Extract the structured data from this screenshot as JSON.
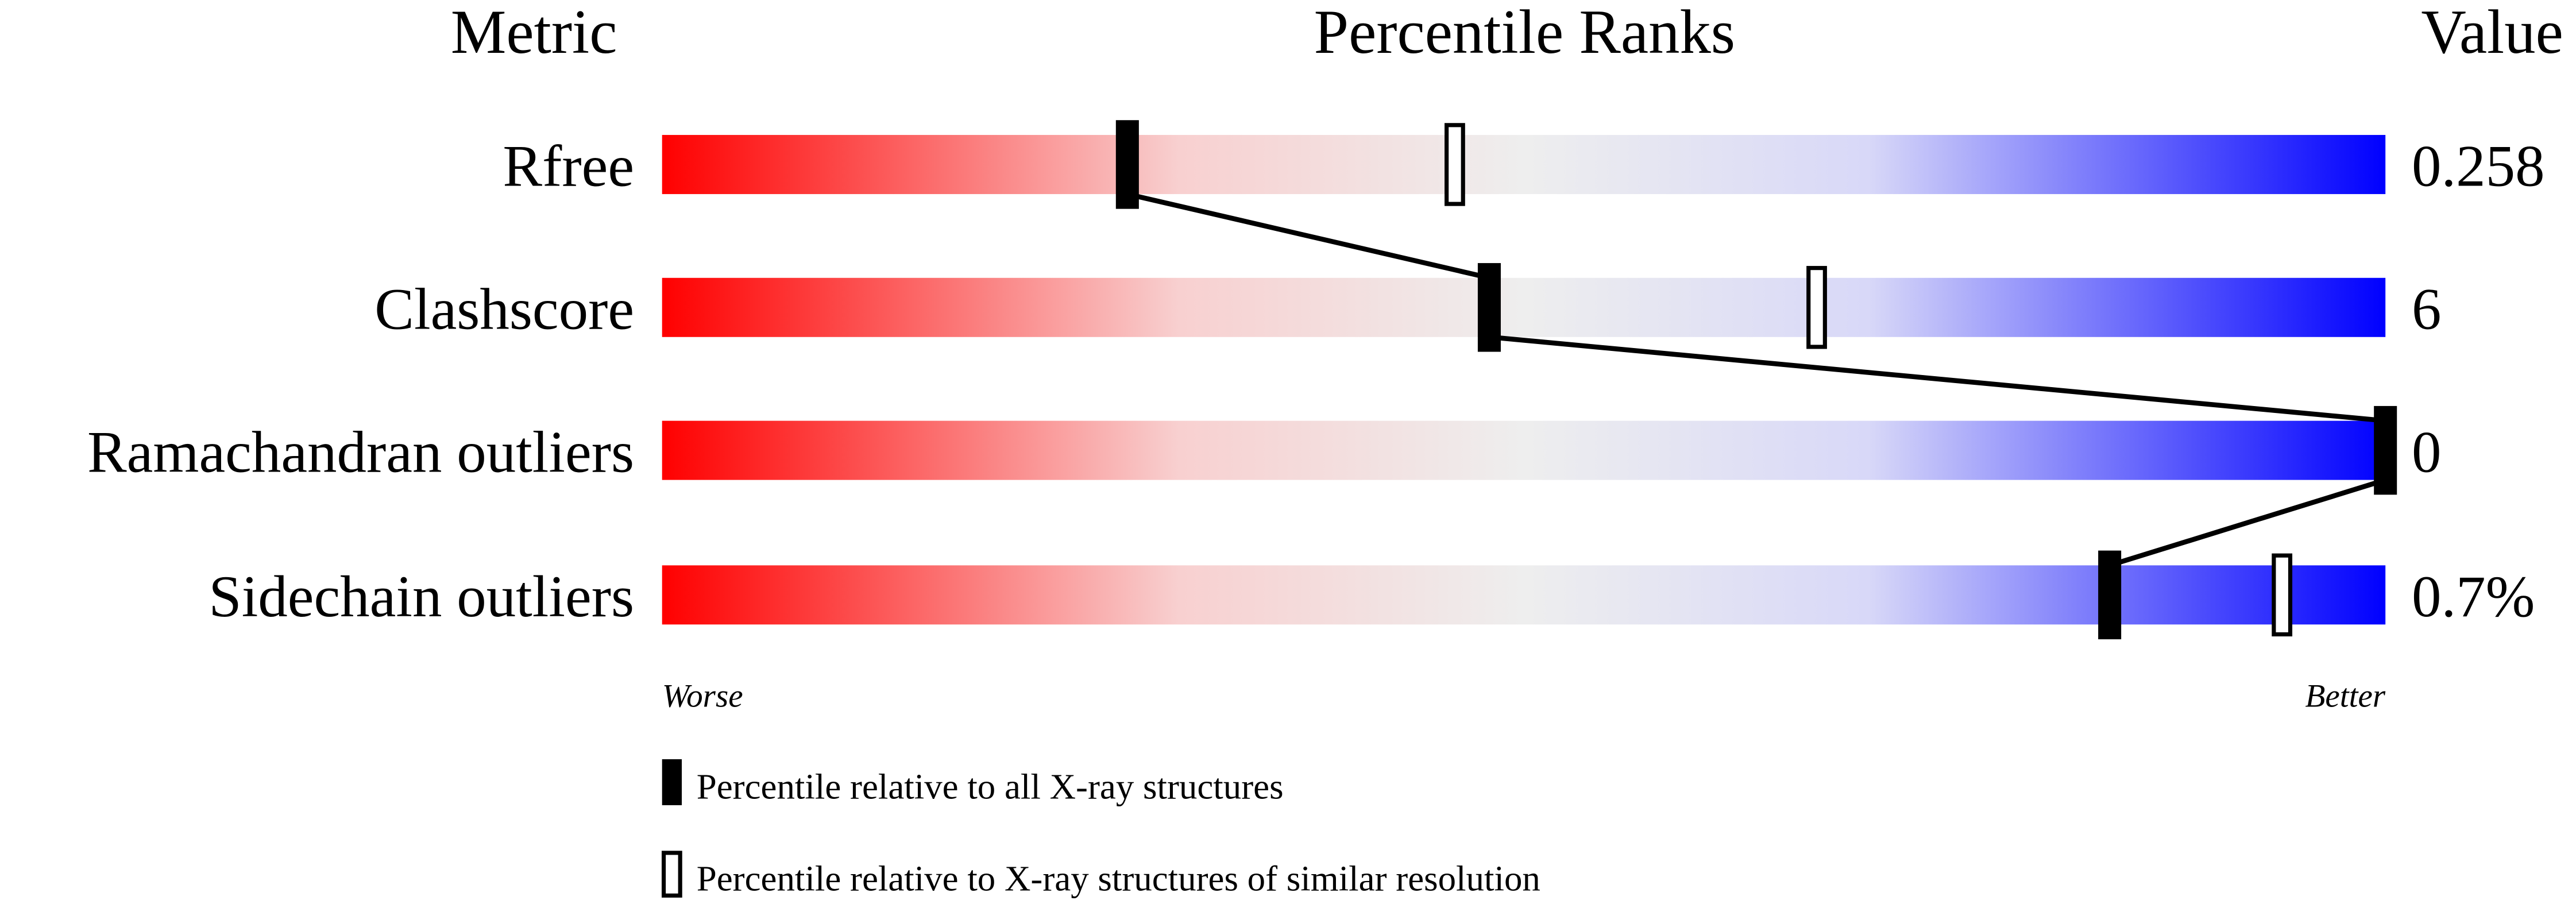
{
  "chart_data": {
    "type": "percentile-slider",
    "headers": {
      "metric": "Metric",
      "ranks": "Percentile Ranks",
      "value": "Value"
    },
    "xlim": [
      0,
      100
    ],
    "rows": [
      {
        "metric": "Rfree",
        "value": "0.258",
        "percentile_all": 27,
        "percentile_similar": 46
      },
      {
        "metric": "Clashscore",
        "value": "6",
        "percentile_all": 48,
        "percentile_similar": 67
      },
      {
        "metric": "Ramachandran outliers",
        "value": "0",
        "percentile_all": 100,
        "percentile_similar": null
      },
      {
        "metric": "Sidechain outliers",
        "value": "0.7%",
        "percentile_all": 84,
        "percentile_similar": 94
      }
    ],
    "axis_labels": {
      "left": "Worse",
      "right": "Better"
    },
    "legend": [
      {
        "marker": "filled",
        "label": "Percentile relative to all X-ray structures"
      },
      {
        "marker": "open",
        "label": "Percentile relative to X-ray structures of similar resolution"
      }
    ],
    "gradient_colors": [
      "#ff0000",
      "#f8d0d0",
      "#eeeeee",
      "#d8d8f8",
      "#0000ff"
    ]
  }
}
